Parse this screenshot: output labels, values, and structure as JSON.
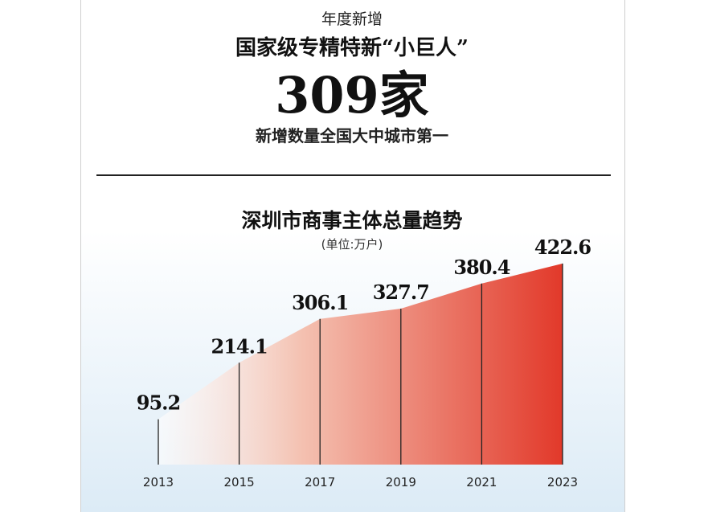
{
  "header": {
    "kicker": "年度新增",
    "title": "国家级专精特新“小巨人”",
    "headline": "309家",
    "note": "新增数量全国大中城市第一"
  },
  "chart_data": {
    "type": "area",
    "title": "深圳市商事主体总量趋势",
    "subtitle": "(单位:万户)",
    "categories": [
      "2013",
      "2015",
      "2017",
      "2019",
      "2021",
      "2023"
    ],
    "values": [
      95.2,
      214.1,
      306.1,
      327.7,
      380.4,
      422.6
    ],
    "color": "#e2392a"
  }
}
